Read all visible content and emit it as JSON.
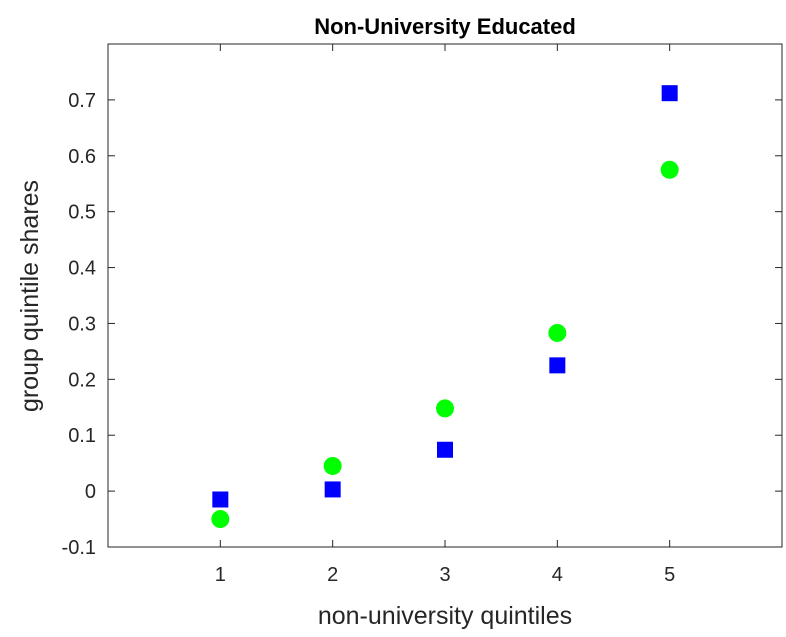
{
  "chart_data": {
    "type": "scatter",
    "title": "Non-University Educated",
    "xlabel": "non-university quintiles",
    "ylabel": "group quintile shares",
    "xlim": [
      0,
      6
    ],
    "ylim": [
      -0.1,
      0.8
    ],
    "xticks": [
      1,
      2,
      3,
      4,
      5
    ],
    "xtick_labels": [
      "1",
      "2",
      "3",
      "4",
      "5"
    ],
    "yticks": [
      -0.1,
      0,
      0.1,
      0.2,
      0.3,
      0.4,
      0.5,
      0.6,
      0.7
    ],
    "ytick_labels": [
      "-0.1",
      "0",
      "0.1",
      "0.2",
      "0.3",
      "0.4",
      "0.5",
      "0.6",
      "0.7"
    ],
    "grid": false,
    "legend": "none",
    "series": [
      {
        "marker": "square",
        "color": "#0000ff",
        "x": [
          1,
          2,
          3,
          4,
          5
        ],
        "y": [
          -0.015,
          0.003,
          0.074,
          0.225,
          0.712
        ]
      },
      {
        "marker": "circle",
        "color": "#00ff00",
        "x": [
          1,
          2,
          3,
          4,
          5
        ],
        "y": [
          -0.05,
          0.045,
          0.148,
          0.283,
          0.575
        ]
      }
    ]
  }
}
